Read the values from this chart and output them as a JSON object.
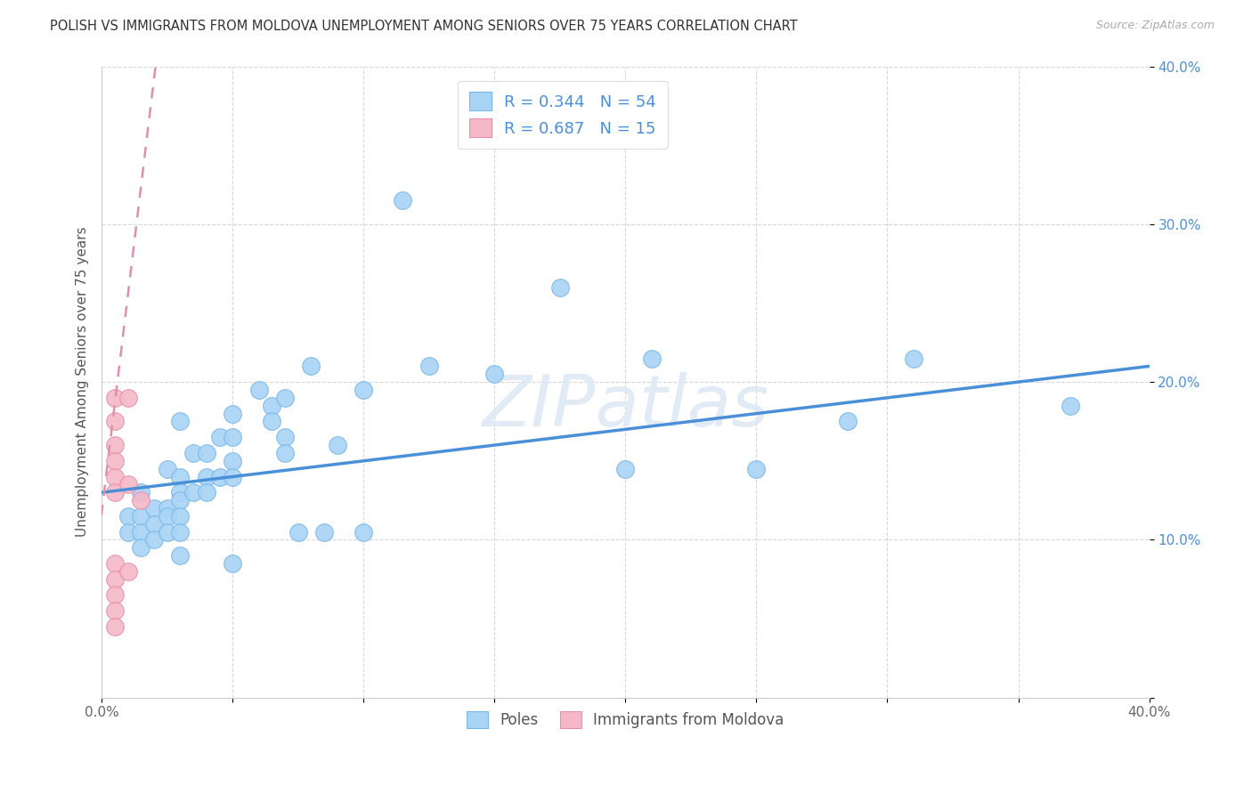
{
  "title": "POLISH VS IMMIGRANTS FROM MOLDOVA UNEMPLOYMENT AMONG SENIORS OVER 75 YEARS CORRELATION CHART",
  "source": "Source: ZipAtlas.com",
  "ylabel": "Unemployment Among Seniors over 75 years",
  "xlim": [
    0.0,
    0.4
  ],
  "ylim": [
    0.0,
    0.4
  ],
  "xticks": [
    0.0,
    0.05,
    0.1,
    0.15,
    0.2,
    0.25,
    0.3,
    0.35,
    0.4
  ],
  "xtick_labels": [
    "0.0%",
    "",
    "",
    "",
    "",
    "",
    "",
    "",
    "40.0%"
  ],
  "yticks": [
    0.0,
    0.1,
    0.2,
    0.3,
    0.4
  ],
  "ytick_labels": [
    "",
    "10.0%",
    "20.0%",
    "30.0%",
    "40.0%"
  ],
  "poles_color": "#a8d4f5",
  "moldova_color": "#f5b8c8",
  "poles_edge_color": "#7ab8e8",
  "moldova_edge_color": "#e890a8",
  "poles_line_color": "#4a90d9",
  "moldova_line_color": "#e090a8",
  "legend_poles_label": "R = 0.344   N = 54",
  "legend_moldova_label": "R = 0.687   N = 15",
  "legend_bottom_poles": "Poles",
  "legend_bottom_moldova": "Immigrants from Moldova",
  "watermark": "ZIPatlas",
  "poles_scatter": [
    [
      0.01,
      0.115
    ],
    [
      0.01,
      0.105
    ],
    [
      0.015,
      0.13
    ],
    [
      0.015,
      0.115
    ],
    [
      0.015,
      0.105
    ],
    [
      0.015,
      0.095
    ],
    [
      0.02,
      0.12
    ],
    [
      0.02,
      0.11
    ],
    [
      0.02,
      0.1
    ],
    [
      0.025,
      0.145
    ],
    [
      0.025,
      0.12
    ],
    [
      0.025,
      0.115
    ],
    [
      0.025,
      0.105
    ],
    [
      0.03,
      0.175
    ],
    [
      0.03,
      0.14
    ],
    [
      0.03,
      0.13
    ],
    [
      0.03,
      0.125
    ],
    [
      0.03,
      0.115
    ],
    [
      0.03,
      0.105
    ],
    [
      0.03,
      0.09
    ],
    [
      0.035,
      0.155
    ],
    [
      0.035,
      0.13
    ],
    [
      0.04,
      0.155
    ],
    [
      0.04,
      0.14
    ],
    [
      0.04,
      0.13
    ],
    [
      0.045,
      0.165
    ],
    [
      0.045,
      0.14
    ],
    [
      0.05,
      0.18
    ],
    [
      0.05,
      0.165
    ],
    [
      0.05,
      0.15
    ],
    [
      0.05,
      0.14
    ],
    [
      0.05,
      0.085
    ],
    [
      0.06,
      0.195
    ],
    [
      0.065,
      0.185
    ],
    [
      0.065,
      0.175
    ],
    [
      0.07,
      0.19
    ],
    [
      0.07,
      0.165
    ],
    [
      0.07,
      0.155
    ],
    [
      0.075,
      0.105
    ],
    [
      0.08,
      0.21
    ],
    [
      0.085,
      0.105
    ],
    [
      0.09,
      0.16
    ],
    [
      0.1,
      0.195
    ],
    [
      0.1,
      0.105
    ],
    [
      0.115,
      0.315
    ],
    [
      0.125,
      0.21
    ],
    [
      0.15,
      0.205
    ],
    [
      0.175,
      0.26
    ],
    [
      0.2,
      0.145
    ],
    [
      0.21,
      0.215
    ],
    [
      0.25,
      0.145
    ],
    [
      0.285,
      0.175
    ],
    [
      0.31,
      0.215
    ],
    [
      0.37,
      0.185
    ]
  ],
  "moldova_scatter": [
    [
      0.005,
      0.19
    ],
    [
      0.005,
      0.175
    ],
    [
      0.005,
      0.16
    ],
    [
      0.005,
      0.15
    ],
    [
      0.005,
      0.14
    ],
    [
      0.005,
      0.13
    ],
    [
      0.005,
      0.085
    ],
    [
      0.005,
      0.075
    ],
    [
      0.005,
      0.065
    ],
    [
      0.005,
      0.055
    ],
    [
      0.005,
      0.045
    ],
    [
      0.01,
      0.19
    ],
    [
      0.01,
      0.135
    ],
    [
      0.01,
      0.08
    ],
    [
      0.015,
      0.125
    ]
  ],
  "poles_trendline": [
    [
      0.0,
      0.13
    ],
    [
      0.4,
      0.21
    ]
  ],
  "moldova_trendline": [
    [
      -0.002,
      0.09
    ],
    [
      0.022,
      0.42
    ]
  ]
}
